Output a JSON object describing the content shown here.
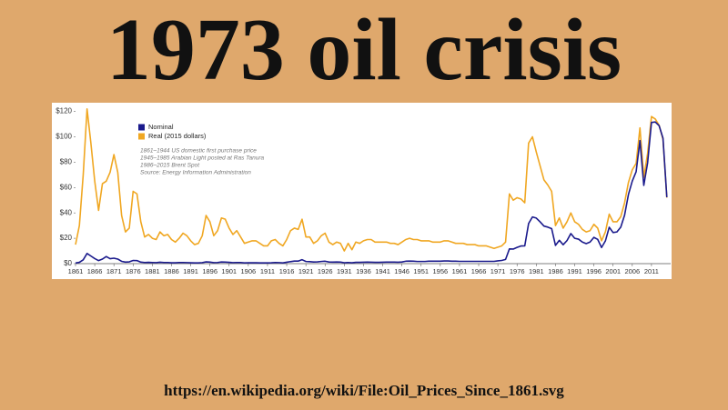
{
  "slide": {
    "title": "1973 oil crisis",
    "url": "https://en.wikipedia.org/wiki/File:Oil_Prices_Since_1861.svg"
  },
  "chart_data": {
    "type": "line",
    "annotations": [
      "1861–1944 US domestic first purchase price",
      "1945–1985 Arabian Light posted at Ras Tanura",
      "1986–2015 Brent Spot",
      "Source: Energy Information Administration"
    ],
    "x": [
      1861,
      1862,
      1863,
      1864,
      1865,
      1866,
      1867,
      1868,
      1869,
      1870,
      1871,
      1872,
      1873,
      1874,
      1875,
      1876,
      1877,
      1878,
      1879,
      1880,
      1881,
      1882,
      1883,
      1884,
      1885,
      1886,
      1887,
      1888,
      1889,
      1890,
      1891,
      1892,
      1893,
      1894,
      1895,
      1896,
      1897,
      1898,
      1899,
      1900,
      1901,
      1902,
      1903,
      1904,
      1905,
      1906,
      1907,
      1908,
      1909,
      1910,
      1911,
      1912,
      1913,
      1914,
      1915,
      1916,
      1917,
      1918,
      1919,
      1920,
      1921,
      1922,
      1923,
      1924,
      1925,
      1926,
      1927,
      1928,
      1929,
      1930,
      1931,
      1932,
      1933,
      1934,
      1935,
      1936,
      1937,
      1938,
      1939,
      1940,
      1941,
      1942,
      1943,
      1944,
      1945,
      1946,
      1947,
      1948,
      1949,
      1950,
      1951,
      1952,
      1953,
      1954,
      1955,
      1956,
      1957,
      1958,
      1959,
      1960,
      1961,
      1962,
      1963,
      1964,
      1965,
      1966,
      1967,
      1968,
      1969,
      1970,
      1971,
      1972,
      1973,
      1974,
      1975,
      1976,
      1977,
      1978,
      1979,
      1980,
      1981,
      1982,
      1983,
      1984,
      1985,
      1986,
      1987,
      1988,
      1989,
      1990,
      1991,
      1992,
      1993,
      1994,
      1995,
      1996,
      1997,
      1998,
      1999,
      2000,
      2001,
      2002,
      2003,
      2004,
      2005,
      2006,
      2007,
      2008,
      2009,
      2010,
      2011,
      2012,
      2013,
      2014,
      2015
    ],
    "series": [
      {
        "name": "Nominal",
        "color": "#1a1a8c",
        "values": [
          0.5,
          1,
          3,
          8,
          6,
          4,
          2.4,
          3.6,
          5.6,
          3.9,
          4.3,
          3.6,
          1.8,
          1.2,
          1.4,
          2.5,
          2.4,
          1.2,
          0.9,
          1,
          0.9,
          0.8,
          1.1,
          0.9,
          0.9,
          0.7,
          0.7,
          0.9,
          0.9,
          0.8,
          0.7,
          0.6,
          0.6,
          0.8,
          1.4,
          1.2,
          0.8,
          0.9,
          1.3,
          1.2,
          1,
          0.8,
          0.9,
          0.9,
          0.6,
          0.7,
          0.7,
          0.7,
          0.6,
          0.6,
          0.6,
          0.7,
          0.9,
          0.8,
          0.6,
          1.1,
          1.6,
          2,
          2,
          3.1,
          1.7,
          1.6,
          1.3,
          1.4,
          1.7,
          1.9,
          1.3,
          1.2,
          1.3,
          1.2,
          0.7,
          0.9,
          0.7,
          1,
          1,
          1.1,
          1.2,
          1.1,
          1,
          1,
          1.1,
          1.2,
          1.2,
          1.2,
          1.1,
          1.3,
          1.9,
          2,
          1.9,
          1.7,
          1.7,
          1.7,
          1.9,
          1.9,
          1.9,
          1.9,
          2.1,
          2.1,
          1.9,
          1.9,
          1.8,
          1.8,
          1.8,
          1.8,
          1.8,
          1.8,
          1.8,
          1.8,
          1.8,
          1.8,
          2.2,
          2.5,
          3.3,
          11.6,
          11.5,
          12.8,
          13.9,
          14,
          31.6,
          36.8,
          35.9,
          32.9,
          29.6,
          28.8,
          27.6,
          14.4,
          18.4,
          14.9,
          18.2,
          23.7,
          20,
          19.3,
          17,
          15.8,
          17,
          20.7,
          19.1,
          12.7,
          17.9,
          28.7,
          24.5,
          25,
          28.8,
          38.3,
          54.5,
          65.1,
          72.4,
          97,
          61.7,
          79.6,
          111.3,
          111.7,
          108.7,
          98.9,
          52.4
        ]
      },
      {
        "name": "Real (2015 dollars)",
        "color": "#f0a722",
        "values": [
          15,
          30,
          70,
          122,
          95,
          65,
          42,
          63,
          65,
          72,
          86,
          72,
          38,
          25,
          28,
          57,
          55,
          33,
          21,
          23,
          20,
          19,
          25,
          22,
          23,
          19,
          17,
          20,
          24,
          22,
          18,
          15,
          16,
          22,
          38,
          33,
          22,
          26,
          36,
          35,
          28,
          23,
          26,
          21,
          16,
          17,
          18,
          18,
          16,
          14,
          14,
          18,
          19,
          16,
          14,
          19,
          26,
          28,
          27,
          35,
          21,
          21,
          16,
          18,
          22,
          24,
          17,
          15,
          17,
          16,
          10,
          16,
          11,
          17,
          16,
          18,
          19,
          19,
          17,
          17,
          17,
          17,
          16,
          16,
          15,
          17,
          19,
          20,
          19,
          19,
          18,
          18,
          18,
          17,
          17,
          17,
          18,
          18,
          17,
          16,
          16,
          16,
          15,
          15,
          15,
          14,
          14,
          14,
          13,
          12,
          13,
          14,
          17,
          55,
          50,
          52,
          51,
          48,
          95,
          100,
          88,
          77,
          66,
          62,
          57,
          30,
          36,
          28,
          33,
          40,
          33,
          31,
          27,
          25,
          26,
          31,
          28,
          18,
          25,
          39,
          33,
          33,
          37,
          48,
          64,
          74,
          79,
          107,
          68,
          87,
          116,
          114,
          109,
          98,
          52
        ]
      }
    ],
    "xlim": [
      1861,
      2016
    ],
    "xticks": [
      1861,
      1866,
      1871,
      1876,
      1881,
      1886,
      1891,
      1896,
      1901,
      1906,
      1911,
      1916,
      1921,
      1926,
      1931,
      1936,
      1941,
      1946,
      1951,
      1956,
      1961,
      1966,
      1971,
      1976,
      1981,
      1986,
      1991,
      1996,
      2001,
      2006,
      2011
    ],
    "ylim": [
      0,
      124
    ],
    "yticks": [
      {
        "value": 0,
        "label": "$0"
      },
      {
        "value": 20,
        "label": "$20"
      },
      {
        "value": 40,
        "label": "$40"
      },
      {
        "value": 60,
        "label": "$60"
      },
      {
        "value": 80,
        "label": "$80"
      },
      {
        "value": 100,
        "label": "$100"
      },
      {
        "value": 120,
        "label": "$120"
      }
    ]
  }
}
